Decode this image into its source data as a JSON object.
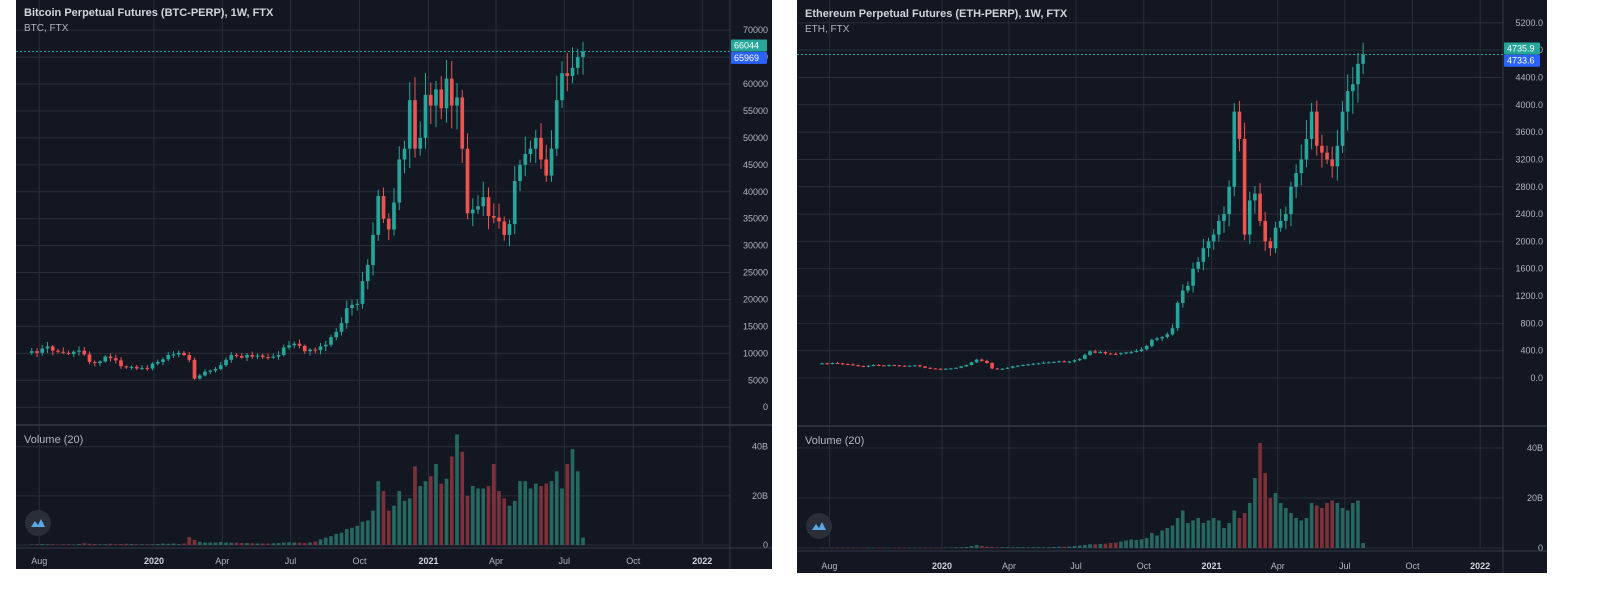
{
  "chart_data": [
    {
      "type": "candlestick",
      "title": "Bitcoin Perpetual Futures (BTC-PERP), 1W, FTX",
      "subtitle": "BTC, FTX",
      "volume_label": "Volume (20)",
      "x_range": [
        "2019-07-01",
        "2022-02-07"
      ],
      "ylim": [
        -2000,
        73000
      ],
      "y_ticks": [
        0,
        5000,
        10000,
        15000,
        20000,
        25000,
        30000,
        35000,
        40000,
        45000,
        50000,
        55000,
        60000,
        65000,
        70000
      ],
      "volume_ylim": [
        0,
        46000000000
      ],
      "volume_ticks": [
        {
          "value": 0,
          "label": "0"
        },
        {
          "value": 20000000000,
          "label": "20B"
        },
        {
          "value": 40000000000,
          "label": "40B"
        }
      ],
      "x_ticks": [
        {
          "date": "2019-08-01",
          "label": "Aug",
          "bold": false
        },
        {
          "date": "2020-01-01",
          "label": "2020",
          "bold": true
        },
        {
          "date": "2020-04-01",
          "label": "Apr",
          "bold": false
        },
        {
          "date": "2020-07-01",
          "label": "Jul",
          "bold": false
        },
        {
          "date": "2020-10-01",
          "label": "Oct",
          "bold": false
        },
        {
          "date": "2021-01-01",
          "label": "2021",
          "bold": true
        },
        {
          "date": "2021-04-01",
          "label": "Apr",
          "bold": false
        },
        {
          "date": "2021-07-01",
          "label": "Jul",
          "bold": false
        },
        {
          "date": "2021-10-01",
          "label": "Oct",
          "bold": false
        },
        {
          "date": "2022-01-01",
          "label": "2022",
          "bold": true
        }
      ],
      "price_badges": [
        {
          "label": "66044",
          "value": 66044,
          "color": "#26a69a"
        },
        {
          "label": "65969",
          "value": 65969,
          "color": "#2962ff"
        }
      ],
      "start_date": "2019-07-22",
      "close_path": [
        10400,
        10100,
        10900,
        11300,
        10500,
        10300,
        10100,
        9900,
        10300,
        10500,
        9800,
        8400,
        8200,
        8500,
        9400,
        9100,
        8700,
        7600,
        7400,
        7500,
        7200,
        7300,
        7200,
        8100,
        8400,
        8900,
        9700,
        9800,
        10100,
        9700,
        8800,
        5300,
        5900,
        6600,
        6800,
        7100,
        7800,
        8800,
        9700,
        9500,
        9200,
        9700,
        9400,
        9600,
        9300,
        9200,
        9400,
        9700,
        11100,
        11500,
        11800,
        11400,
        10400,
        10700,
        10600,
        11300,
        11600,
        13000,
        14000,
        15600,
        18400,
        19000,
        19200,
        23400,
        26400,
        32000,
        39200,
        35000,
        33000,
        38000,
        46000,
        48000,
        57000,
        48000,
        50000,
        58000,
        56000,
        59000,
        55500,
        61000,
        56000,
        57500,
        48000,
        36000,
        36700,
        37300,
        39000,
        35500,
        35200,
        34500,
        32000,
        34000,
        42000,
        45000,
        47000,
        48000,
        50000,
        46000,
        43000,
        48000,
        57000,
        62000,
        61500,
        63000,
        65000,
        66044
      ],
      "volume_path": [
        0.2,
        0.3,
        0.4,
        0.3,
        0.3,
        0.2,
        0.3,
        0.3,
        0.2,
        0.4,
        0.7,
        0.5,
        0.4,
        0.3,
        0.3,
        0.5,
        0.3,
        0.4,
        0.5,
        0.4,
        0.3,
        0.3,
        0.3,
        0.3,
        0.4,
        0.6,
        0.5,
        0.6,
        0.4,
        0.6,
        3.2,
        2.1,
        1.3,
        1.0,
        1.0,
        1.0,
        1.2,
        1.0,
        0.9,
        0.9,
        0.8,
        0.8,
        0.7,
        0.6,
        0.6,
        0.6,
        0.7,
        0.8,
        1.0,
        1.1,
        1.0,
        0.9,
        0.8,
        1.0,
        1.4,
        2.3,
        3.0,
        3.6,
        4.5,
        5.0,
        6.5,
        7.0,
        7.8,
        9.5,
        10.0,
        14.0,
        26.0,
        22.0,
        14.0,
        16.0,
        22.0,
        18.0,
        19.0,
        32.0,
        24.0,
        26.0,
        28.0,
        33.0,
        25.0,
        27.0,
        36.0,
        45.0,
        38.0,
        20.0,
        24.0,
        23.0,
        23.0,
        24.0,
        33.0,
        22.0,
        19.0,
        16.0,
        18.0,
        26.0,
        26.0,
        23.0,
        25.0,
        24.0,
        25.0,
        26.0,
        30.0,
        23.0,
        33.0,
        39.0,
        30.0,
        3.0
      ]
    },
    {
      "type": "candlestick",
      "title": "Ethereum Perpetual Futures (ETH-PERP), 1W, FTX",
      "subtitle": "ETH, FTX",
      "volume_label": "Volume (20)",
      "x_range": [
        "2019-06-18",
        "2022-02-01"
      ],
      "ylim": [
        -600,
        5300
      ],
      "y_ticks": [
        0,
        400,
        800,
        1200,
        1600,
        2000,
        2400,
        2800,
        3200,
        3600,
        4000,
        4400,
        4800,
        5200
      ],
      "y_tick_labels": [
        "0.0",
        "400.0",
        "800.0",
        "1200.0",
        "1600.0",
        "2000.0",
        "2400.0",
        "2800.0",
        "3200.0",
        "3600.0",
        "4000.0",
        "4400.0",
        "4800.0",
        "5200.0"
      ],
      "volume_ylim": [
        0,
        46000000000
      ],
      "volume_ticks": [
        {
          "value": 0,
          "label": "0"
        },
        {
          "value": 20000000000,
          "label": "20B"
        },
        {
          "value": 40000000000,
          "label": "40B"
        }
      ],
      "x_ticks": [
        {
          "date": "2019-08-01",
          "label": "Aug",
          "bold": false
        },
        {
          "date": "2020-01-01",
          "label": "2020",
          "bold": true
        },
        {
          "date": "2020-04-01",
          "label": "Apr",
          "bold": false
        },
        {
          "date": "2020-07-01",
          "label": "Jul",
          "bold": false
        },
        {
          "date": "2020-10-01",
          "label": "Oct",
          "bold": false
        },
        {
          "date": "2021-01-01",
          "label": "2021",
          "bold": true
        },
        {
          "date": "2021-04-01",
          "label": "Apr",
          "bold": false
        },
        {
          "date": "2021-07-01",
          "label": "Jul",
          "bold": false
        },
        {
          "date": "2021-10-01",
          "label": "Oct",
          "bold": false
        },
        {
          "date": "2022-01-01",
          "label": "2022",
          "bold": true
        }
      ],
      "price_badges": [
        {
          "label": "4735.9",
          "value": 4735.9,
          "color": "#26a69a"
        },
        {
          "label": "4733.6",
          "value": 4733.6,
          "color": "#2962ff"
        }
      ],
      "start_date": "2019-07-22",
      "close_path": [
        215,
        210,
        220,
        215,
        205,
        200,
        190,
        175,
        170,
        180,
        190,
        185,
        180,
        190,
        185,
        180,
        175,
        180,
        185,
        170,
        150,
        140,
        135,
        130,
        135,
        140,
        150,
        170,
        190,
        230,
        270,
        250,
        220,
        140,
        130,
        135,
        150,
        170,
        180,
        190,
        200,
        210,
        215,
        225,
        230,
        235,
        245,
        235,
        240,
        260,
        280,
        340,
        390,
        370,
        380,
        360,
        355,
        350,
        365,
        375,
        380,
        395,
        420,
        470,
        560,
        580,
        600,
        640,
        730,
        1100,
        1280,
        1350,
        1600,
        1700,
        1900,
        2000,
        2100,
        2300,
        2400,
        2800,
        3900,
        3500,
        2100,
        2600,
        2700,
        2300,
        2000,
        1900,
        2200,
        2300,
        2400,
        2800,
        3000,
        3200,
        3500,
        3900,
        3400,
        3300,
        3200,
        3100,
        3400,
        3900,
        4200,
        4300,
        4600,
        4735.9
      ],
      "volume_path": [
        0.1,
        0.1,
        0.1,
        0.1,
        0.1,
        0.1,
        0.1,
        0.1,
        0.1,
        0.1,
        0.1,
        0.1,
        0.1,
        0.1,
        0.1,
        0.1,
        0.1,
        0.1,
        0.1,
        0.1,
        0.1,
        0.1,
        0.1,
        0.1,
        0.2,
        0.2,
        0.3,
        0.3,
        0.4,
        0.8,
        1.2,
        0.8,
        0.5,
        0.4,
        0.3,
        0.3,
        0.3,
        0.3,
        0.3,
        0.3,
        0.3,
        0.3,
        0.3,
        0.3,
        0.3,
        0.4,
        0.5,
        0.5,
        0.6,
        0.8,
        1.0,
        1.2,
        1.5,
        1.5,
        1.6,
        1.7,
        2.0,
        2.2,
        2.6,
        3.0,
        3.4,
        3.2,
        3.5,
        4.0,
        6.0,
        5.0,
        7.0,
        8.0,
        9.0,
        12.0,
        15.0,
        10.0,
        11.0,
        12.0,
        10.0,
        11.0,
        12.0,
        11.0,
        8.0,
        10.0,
        15.0,
        12.0,
        14.0,
        18.0,
        28.0,
        42.0,
        30.0,
        20.0,
        22.0,
        18.0,
        16.0,
        14.0,
        12.0,
        11.0,
        12.0,
        18.0,
        17.0,
        16.0,
        18.0,
        19.0,
        18.0,
        16.0,
        15.0,
        18.0,
        19.0,
        2.0
      ]
    }
  ]
}
